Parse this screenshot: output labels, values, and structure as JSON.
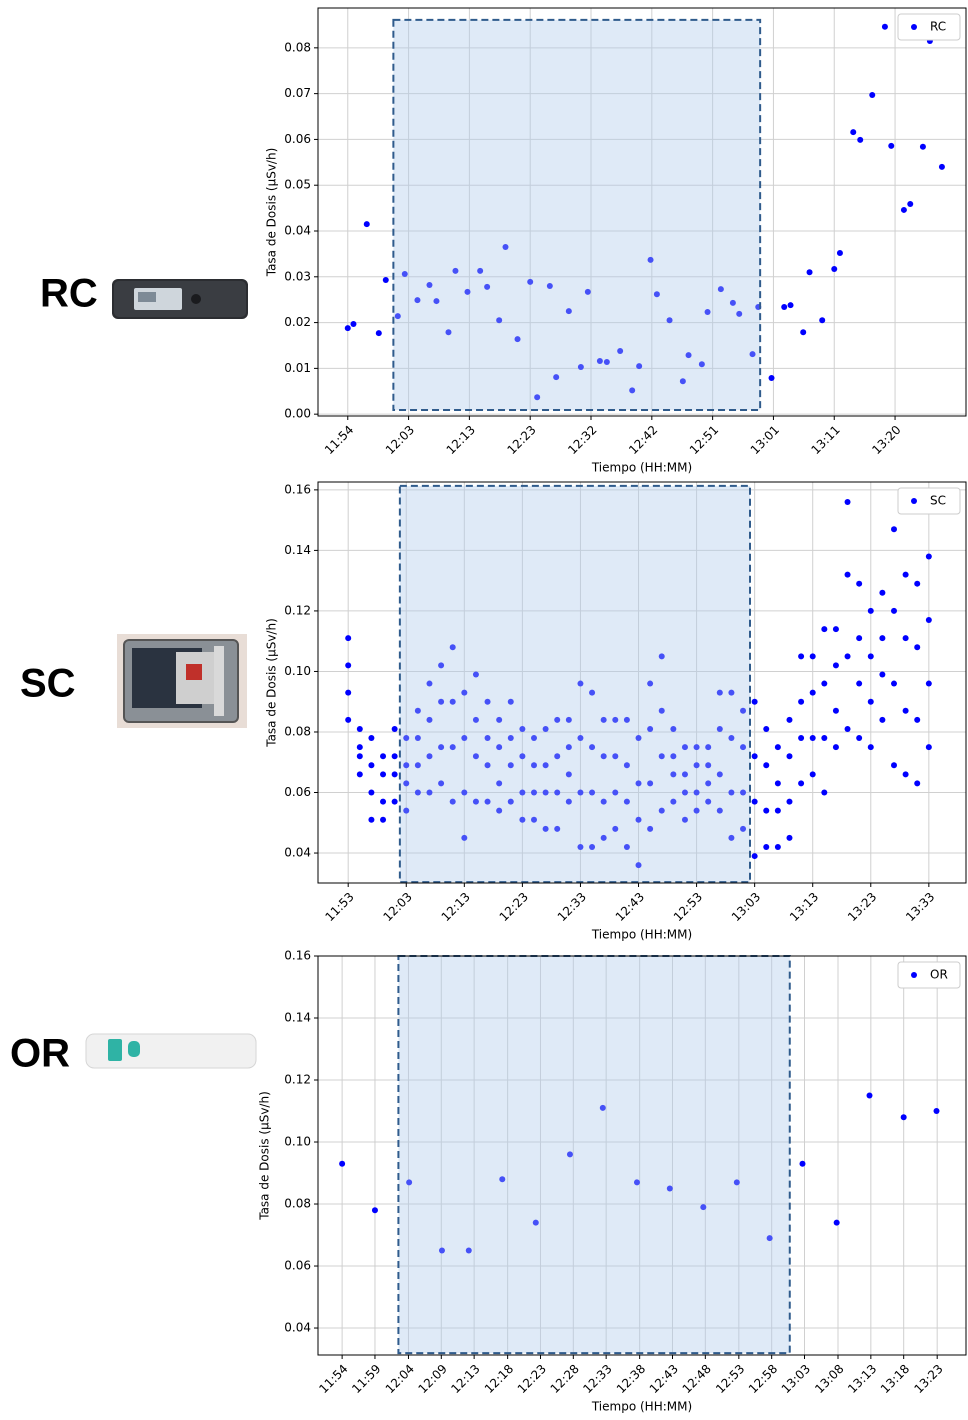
{
  "panel_labels": [
    "RC",
    "SC",
    "OR"
  ],
  "chart_data": [
    {
      "type": "scatter",
      "xlabel": "Tiempo (HH:MM)",
      "ylabel": "Tasa de Dosis (µSv/h)",
      "grid": true,
      "legend": "upper right",
      "xlim": [
        709.6,
        811.9
      ],
      "ylim": [
        -0.0004,
        0.0887
      ],
      "yticks": [
        {
          "value": 0,
          "label": "0.00"
        },
        {
          "value": 0.01,
          "label": "0.01"
        },
        {
          "value": 0.02,
          "label": "0.02"
        },
        {
          "value": 0.03,
          "label": "0.03"
        },
        {
          "value": 0.04,
          "label": "0.04"
        },
        {
          "value": 0.05,
          "label": "0.05"
        },
        {
          "value": 0.06,
          "label": "0.06"
        },
        {
          "value": 0.07,
          "label": "0.07"
        },
        {
          "value": 0.08,
          "label": "0.08"
        }
      ],
      "xticks": [
        {
          "value": 714.3,
          "label": "11:54"
        },
        {
          "value": 723.9,
          "label": "12:03"
        },
        {
          "value": 733.5,
          "label": "12:13"
        },
        {
          "value": 743.1,
          "label": "12:23"
        },
        {
          "value": 752.7,
          "label": "12:32"
        },
        {
          "value": 762.3,
          "label": "12:42"
        },
        {
          "value": 771.9,
          "label": "12:51"
        },
        {
          "value": 781.5,
          "label": "13:01"
        },
        {
          "value": 791.1,
          "label": "13:11"
        },
        {
          "value": 800.7,
          "label": "13:20"
        }
      ],
      "highlight": {
        "x": [
          721.5,
          779.4
        ],
        "y": [
          0.0009,
          0.0861
        ],
        "color": "#aecbea",
        "edge_color": "#2f5b8c"
      },
      "series": [
        {
          "name": "RC",
          "color": "#0000ff",
          "x": [
            714.3,
            715.2,
            717.3,
            719.2,
            720.3,
            722.2,
            723.3,
            725.3,
            727.2,
            728.3,
            730.2,
            731.3,
            733.2,
            735.2,
            736.3,
            738.2,
            739.2,
            741.1,
            743.1,
            744.2,
            746.2,
            747.2,
            749.2,
            751.1,
            752.2,
            754.1,
            755.2,
            757.3,
            759.2,
            760.3,
            762.1,
            763.1,
            765.1,
            767.2,
            768.1,
            770.2,
            771.1,
            773.2,
            775.1,
            776.1,
            778.2,
            779.1,
            781.2,
            783.2,
            784.2,
            786.2,
            787.2,
            789.2,
            791.1,
            792.0,
            794.1,
            795.2,
            797.1,
            799.1,
            800.1,
            802.1,
            803.1,
            805.1,
            806.2,
            808.1
          ],
          "values": [
            0.0188,
            0.0197,
            0.0415,
            0.0177,
            0.0293,
            0.0214,
            0.0306,
            0.0249,
            0.0282,
            0.0247,
            0.0179,
            0.0313,
            0.0267,
            0.0313,
            0.0278,
            0.0205,
            0.0365,
            0.0164,
            0.0289,
            0.0037,
            0.028,
            0.0081,
            0.0225,
            0.0103,
            0.0267,
            0.0116,
            0.0114,
            0.0138,
            0.0052,
            0.0105,
            0.0337,
            0.0262,
            0.0205,
            0.0072,
            0.0129,
            0.0109,
            0.0223,
            0.0273,
            0.0243,
            0.0219,
            0.0131,
            0.0234,
            0.0079,
            0.0234,
            0.0238,
            0.0179,
            0.031,
            0.0205,
            0.0317,
            0.0352,
            0.0616,
            0.0599,
            0.0697,
            0.0846,
            0.0586,
            0.0446,
            0.0459,
            0.0584,
            0.0815,
            0.054
          ]
        }
      ]
    },
    {
      "type": "scatter",
      "xlabel": "Tiempo (HH:MM)",
      "ylabel": "Tasa de Dosis (µSv/h)",
      "grid": true,
      "legend": "upper right",
      "xlim": [
        707.8,
        819.4
      ],
      "ylim": [
        0.0301,
        0.1626
      ],
      "yticks": [
        {
          "value": 0.04,
          "label": "0.04"
        },
        {
          "value": 0.06,
          "label": "0.06"
        },
        {
          "value": 0.08,
          "label": "0.08"
        },
        {
          "value": 0.1,
          "label": "0.10"
        },
        {
          "value": 0.12,
          "label": "0.12"
        },
        {
          "value": 0.14,
          "label": "0.14"
        },
        {
          "value": 0.16,
          "label": "0.16"
        }
      ],
      "xticks": [
        {
          "value": 713,
          "label": "11:53"
        },
        {
          "value": 723,
          "label": "12:03"
        },
        {
          "value": 733,
          "label": "12:13"
        },
        {
          "value": 743,
          "label": "12:23"
        },
        {
          "value": 753,
          "label": "12:33"
        },
        {
          "value": 763,
          "label": "12:43"
        },
        {
          "value": 773,
          "label": "12:53"
        },
        {
          "value": 783,
          "label": "13:03"
        },
        {
          "value": 793,
          "label": "13:13"
        },
        {
          "value": 803,
          "label": "13:23"
        },
        {
          "value": 813,
          "label": "13:33"
        }
      ],
      "highlight": {
        "x": [
          721.9,
          782.2
        ],
        "y": [
          0.0304,
          0.1613
        ],
        "color": "#aecbea",
        "edge_color": "#2f5b8c"
      },
      "series": [
        {
          "name": "SC",
          "color": "#0000ff",
          "x": [
            713,
            713,
            713,
            713,
            715,
            715,
            715,
            715,
            717,
            717,
            717,
            717,
            719,
            719,
            719,
            719,
            721,
            721,
            721,
            721,
            723,
            723,
            723,
            723,
            725,
            725,
            725,
            725,
            727,
            727,
            727,
            727,
            729,
            729,
            729,
            729,
            731,
            731,
            731,
            731,
            733,
            733,
            733,
            733,
            735,
            735,
            735,
            735,
            737,
            737,
            737,
            737,
            739,
            739,
            739,
            739,
            741,
            741,
            741,
            741,
            743,
            743,
            743,
            743,
            745,
            745,
            745,
            745,
            747,
            747,
            747,
            747,
            749,
            749,
            749,
            749,
            751,
            751,
            751,
            751,
            753,
            753,
            753,
            753,
            755,
            755,
            755,
            755,
            757,
            757,
            757,
            757,
            759,
            759,
            759,
            759,
            761,
            761,
            761,
            761,
            763,
            763,
            763,
            763,
            765,
            765,
            765,
            765,
            767,
            767,
            767,
            767,
            769,
            769,
            769,
            769,
            771,
            771,
            771,
            771,
            773,
            773,
            773,
            773,
            775,
            775,
            775,
            775,
            777,
            777,
            777,
            777,
            779,
            779,
            779,
            779,
            781,
            781,
            781,
            781,
            783,
            783,
            783,
            783,
            785,
            785,
            785,
            785,
            787,
            787,
            787,
            787,
            789,
            789,
            789,
            789,
            791,
            791,
            791,
            791,
            793,
            793,
            793,
            793,
            795,
            795,
            795,
            795,
            797,
            797,
            797,
            797,
            799,
            799,
            799,
            799,
            801,
            801,
            801,
            801,
            803,
            803,
            803,
            803,
            805,
            805,
            805,
            805,
            807,
            807,
            807,
            807,
            809,
            809,
            809,
            809,
            811,
            811,
            811,
            811,
            813,
            813,
            813,
            813
          ],
          "values": [
            0.084,
            0.093,
            0.102,
            0.111,
            0.066,
            0.072,
            0.075,
            0.081,
            0.051,
            0.06,
            0.069,
            0.078,
            0.051,
            0.057,
            0.066,
            0.072,
            0.057,
            0.066,
            0.072,
            0.081,
            0.054,
            0.063,
            0.069,
            0.078,
            0.06,
            0.069,
            0.078,
            0.087,
            0.06,
            0.072,
            0.084,
            0.096,
            0.063,
            0.075,
            0.09,
            0.102,
            0.057,
            0.075,
            0.09,
            0.108,
            0.045,
            0.06,
            0.078,
            0.093,
            0.057,
            0.072,
            0.084,
            0.099,
            0.057,
            0.069,
            0.078,
            0.09,
            0.054,
            0.063,
            0.075,
            0.084,
            0.057,
            0.069,
            0.078,
            0.09,
            0.051,
            0.06,
            0.072,
            0.081,
            0.051,
            0.06,
            0.069,
            0.078,
            0.048,
            0.06,
            0.069,
            0.081,
            0.048,
            0.06,
            0.072,
            0.084,
            0.057,
            0.066,
            0.075,
            0.084,
            0.042,
            0.06,
            0.078,
            0.096,
            0.042,
            0.06,
            0.075,
            0.093,
            0.045,
            0.057,
            0.072,
            0.084,
            0.048,
            0.06,
            0.072,
            0.084,
            0.042,
            0.057,
            0.069,
            0.084,
            0.036,
            0.051,
            0.063,
            0.078,
            0.048,
            0.063,
            0.081,
            0.096,
            0.054,
            0.072,
            0.087,
            0.105,
            0.057,
            0.066,
            0.072,
            0.081,
            0.051,
            0.06,
            0.066,
            0.075,
            0.054,
            0.06,
            0.069,
            0.075,
            0.057,
            0.063,
            0.069,
            0.075,
            0.054,
            0.066,
            0.081,
            0.093,
            0.045,
            0.06,
            0.078,
            0.093,
            0.048,
            0.06,
            0.075,
            0.087,
            0.039,
            0.057,
            0.072,
            0.09,
            0.042,
            0.054,
            0.069,
            0.081,
            0.042,
            0.054,
            0.063,
            0.075,
            0.045,
            0.057,
            0.072,
            0.084,
            0.063,
            0.078,
            0.09,
            0.105,
            0.066,
            0.078,
            0.093,
            0.105,
            0.06,
            0.078,
            0.096,
            0.114,
            0.075,
            0.087,
            0.102,
            0.114,
            0.081,
            0.105,
            0.132,
            0.156,
            0.078,
            0.096,
            0.111,
            0.129,
            0.075,
            0.09,
            0.105,
            0.12,
            0.084,
            0.099,
            0.111,
            0.126,
            0.069,
            0.096,
            0.12,
            0.147,
            0.066,
            0.087,
            0.111,
            0.132,
            0.063,
            0.084,
            0.108,
            0.129,
            0.075,
            0.096,
            0.117,
            0.138
          ]
        }
      ]
    },
    {
      "type": "scatter",
      "xlabel": "Tiempo (HH:MM)",
      "ylabel": "Tasa de Dosis (µSv/h)",
      "grid": true,
      "legend": "upper right",
      "xlim": [
        710.6,
        807.3
      ],
      "ylim": [
        0.0313,
        0.16
      ],
      "yticks": [
        {
          "value": 0.04,
          "label": "0.04"
        },
        {
          "value": 0.06,
          "label": "0.06"
        },
        {
          "value": 0.08,
          "label": "0.08"
        },
        {
          "value": 0.1,
          "label": "0.10"
        },
        {
          "value": 0.12,
          "label": "0.12"
        },
        {
          "value": 0.14,
          "label": "0.14"
        },
        {
          "value": 0.16,
          "label": "0.16"
        }
      ],
      "xticks": [
        {
          "value": 714.2,
          "label": "11:54"
        },
        {
          "value": 719.1,
          "label": "11:59"
        },
        {
          "value": 724.1,
          "label": "12:04"
        },
        {
          "value": 729.0,
          "label": "12:09"
        },
        {
          "value": 733.9,
          "label": "12:13"
        },
        {
          "value": 738.9,
          "label": "12:18"
        },
        {
          "value": 743.8,
          "label": "12:23"
        },
        {
          "value": 748.7,
          "label": "12:28"
        },
        {
          "value": 753.6,
          "label": "12:33"
        },
        {
          "value": 758.6,
          "label": "12:38"
        },
        {
          "value": 763.5,
          "label": "12:43"
        },
        {
          "value": 768.4,
          "label": "12:48"
        },
        {
          "value": 773.4,
          "label": "12:53"
        },
        {
          "value": 778.3,
          "label": "12:58"
        },
        {
          "value": 783.2,
          "label": "13:03"
        },
        {
          "value": 788.2,
          "label": "13:08"
        },
        {
          "value": 793.1,
          "label": "13:13"
        },
        {
          "value": 798.0,
          "label": "13:18"
        },
        {
          "value": 803.0,
          "label": "13:23"
        }
      ],
      "highlight": {
        "x": [
          722.6,
          781.0
        ],
        "y": [
          0.0319,
          0.16
        ],
        "color": "#aecbea",
        "edge_color": "#2f5b8c"
      },
      "series": [
        {
          "name": "OR",
          "color": "#0000ff",
          "x": [
            714.2,
            719.1,
            724.2,
            729.1,
            733.1,
            738.1,
            743.1,
            748.2,
            753.1,
            758.2,
            763.1,
            768.1,
            773.1,
            778.0,
            782.9,
            788.0,
            792.9,
            798.0,
            802.9
          ],
          "values": [
            0.093,
            0.078,
            0.087,
            0.065,
            0.065,
            0.088,
            0.074,
            0.096,
            0.111,
            0.087,
            0.085,
            0.079,
            0.087,
            0.069,
            0.093,
            0.074,
            0.115,
            0.108,
            0.11
          ]
        }
      ]
    }
  ]
}
